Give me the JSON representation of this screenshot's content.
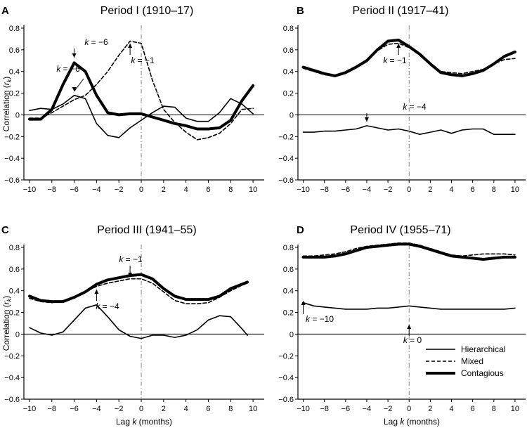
{
  "chart_data": [
    {
      "type": "line",
      "letter": "A",
      "title": "Period I  (1910–17)",
      "xlabel": "",
      "ylabel": "Correlation (r_k)",
      "xlim": [
        -10.5,
        11
      ],
      "ylim": [
        -0.6,
        0.8
      ],
      "x": [
        -10,
        -9,
        -8,
        -7,
        -6,
        -5,
        -4,
        -3,
        -2,
        -1,
        0,
        1,
        2,
        3,
        4,
        5,
        6,
        7,
        8,
        9,
        10
      ],
      "series": [
        {
          "name": "Hierarchical",
          "style": "thin",
          "values": [
            0.04,
            0.06,
            0.05,
            0.1,
            0.18,
            0.15,
            -0.08,
            -0.19,
            -0.21,
            -0.12,
            -0.05,
            0.02,
            0.08,
            0.07,
            -0.03,
            -0.06,
            -0.06,
            0.02,
            0.15,
            0.1,
            0.01
          ]
        },
        {
          "name": "Mixed",
          "style": "dashed",
          "values": [
            -0.03,
            -0.03,
            0.02,
            0.08,
            0.14,
            0.18,
            0.28,
            0.4,
            0.55,
            0.68,
            0.66,
            0.32,
            0.05,
            -0.07,
            -0.16,
            -0.23,
            -0.21,
            -0.17,
            -0.08,
            0.05,
            0.06
          ]
        },
        {
          "name": "Contagious",
          "style": "thick",
          "values": [
            -0.04,
            -0.04,
            0.05,
            0.28,
            0.48,
            0.4,
            0.18,
            0.02,
            0.0,
            0.01,
            0.01,
            -0.02,
            -0.05,
            -0.08,
            -0.1,
            -0.13,
            -0.13,
            -0.12,
            -0.05,
            0.13,
            0.27
          ]
        }
      ],
      "annotations": [
        {
          "text": "k = −6",
          "x": -6,
          "series": 2
        },
        {
          "text": "k = −6",
          "x": -6,
          "series": 0
        },
        {
          "text": "k = −1",
          "x": -1,
          "series": 1
        }
      ]
    },
    {
      "type": "line",
      "letter": "B",
      "title": "Period II  (1917–41)",
      "xlabel": "",
      "ylabel": "",
      "xlim": [
        -10.5,
        11
      ],
      "ylim": [
        -0.6,
        0.8
      ],
      "x": [
        -10,
        -9,
        -8,
        -7,
        -6,
        -5,
        -4,
        -3,
        -2,
        -1,
        0,
        1,
        2,
        3,
        4,
        5,
        6,
        7,
        8,
        9,
        10
      ],
      "series": [
        {
          "name": "Hierarchical",
          "style": "thin",
          "values": [
            -0.16,
            -0.16,
            -0.15,
            -0.15,
            -0.14,
            -0.13,
            -0.1,
            -0.12,
            -0.14,
            -0.13,
            -0.15,
            -0.18,
            -0.16,
            -0.14,
            -0.17,
            -0.14,
            -0.13,
            -0.13,
            -0.18,
            -0.18,
            -0.18
          ]
        },
        {
          "name": "Mixed",
          "style": "dashed",
          "values": [
            0.43,
            0.4,
            0.37,
            0.36,
            0.4,
            0.45,
            0.51,
            0.59,
            0.65,
            0.66,
            0.62,
            0.55,
            0.47,
            0.4,
            0.39,
            0.38,
            0.4,
            0.42,
            0.47,
            0.51,
            0.52
          ]
        },
        {
          "name": "Contagious",
          "style": "thick",
          "values": [
            0.44,
            0.41,
            0.38,
            0.36,
            0.39,
            0.44,
            0.5,
            0.6,
            0.68,
            0.69,
            0.63,
            0.56,
            0.47,
            0.39,
            0.37,
            0.36,
            0.38,
            0.41,
            0.47,
            0.54,
            0.58
          ]
        }
      ],
      "annotations": [
        {
          "text": "k = −4",
          "x": -4,
          "series": 0
        },
        {
          "text": "k = −1",
          "x": -1,
          "series": 1
        }
      ]
    },
    {
      "type": "line",
      "letter": "C",
      "title": "Period III  (1941–55)",
      "xlabel": "Lag k (months)",
      "ylabel": "Correlation (r_k)",
      "xlim": [
        -10.5,
        11
      ],
      "ylim": [
        -0.6,
        0.8
      ],
      "x": [
        -10,
        -9,
        -8,
        -7,
        -6,
        -5,
        -4,
        -3,
        -2,
        -1,
        0,
        1,
        2,
        3,
        4,
        5,
        6,
        7,
        8,
        9,
        9.5
      ],
      "series": [
        {
          "name": "Hierarchical",
          "style": "thin",
          "values": [
            0.06,
            0.01,
            -0.01,
            0.02,
            0.13,
            0.24,
            0.27,
            0.16,
            0.04,
            -0.02,
            -0.04,
            -0.01,
            -0.01,
            -0.03,
            -0.01,
            0.04,
            0.13,
            0.17,
            0.16,
            0.05,
            -0.01
          ]
        },
        {
          "name": "Mixed",
          "style": "dashed",
          "values": [
            0.33,
            0.3,
            0.29,
            0.31,
            0.33,
            0.39,
            0.44,
            0.47,
            0.49,
            0.51,
            0.51,
            0.47,
            0.39,
            0.31,
            0.28,
            0.28,
            0.29,
            0.34,
            0.4,
            0.45,
            0.47
          ]
        },
        {
          "name": "Contagious",
          "style": "thick",
          "values": [
            0.35,
            0.31,
            0.3,
            0.3,
            0.34,
            0.39,
            0.46,
            0.5,
            0.52,
            0.54,
            0.55,
            0.51,
            0.42,
            0.35,
            0.32,
            0.32,
            0.32,
            0.35,
            0.42,
            0.46,
            0.48
          ]
        }
      ],
      "annotations": [
        {
          "text": "k = −1",
          "x": -1,
          "series": 2
        },
        {
          "text": "k = −4",
          "x": -4,
          "series": 0
        }
      ]
    },
    {
      "type": "line",
      "letter": "D",
      "title": "Period IV  (1955–71)",
      "xlabel": "Lag k (months)",
      "ylabel": "",
      "xlim": [
        -10.5,
        11
      ],
      "ylim": [
        -0.6,
        0.8
      ],
      "x": [
        -10,
        -9,
        -8,
        -7,
        -6,
        -5,
        -4,
        -3,
        -2,
        -1,
        0,
        1,
        2,
        3,
        4,
        5,
        6,
        7,
        8,
        9,
        10
      ],
      "series": [
        {
          "name": "Hierarchical",
          "style": "thin",
          "values": [
            0.29,
            0.26,
            0.25,
            0.24,
            0.23,
            0.23,
            0.23,
            0.24,
            0.24,
            0.25,
            0.26,
            0.25,
            0.24,
            0.23,
            0.23,
            0.23,
            0.23,
            0.23,
            0.23,
            0.23,
            0.24
          ]
        },
        {
          "name": "Mixed",
          "style": "dashed",
          "values": [
            0.72,
            0.72,
            0.73,
            0.74,
            0.76,
            0.79,
            0.81,
            0.82,
            0.83,
            0.84,
            0.84,
            0.82,
            0.79,
            0.76,
            0.73,
            0.72,
            0.73,
            0.74,
            0.74,
            0.74,
            0.73
          ]
        },
        {
          "name": "Contagious",
          "style": "thick",
          "values": [
            0.71,
            0.71,
            0.71,
            0.72,
            0.74,
            0.77,
            0.8,
            0.81,
            0.82,
            0.83,
            0.83,
            0.81,
            0.78,
            0.75,
            0.72,
            0.71,
            0.7,
            0.69,
            0.7,
            0.71,
            0.71
          ]
        }
      ],
      "annotations": [
        {
          "text": "k = 0",
          "x": 0,
          "series": 2
        },
        {
          "text": "k = −10",
          "x": -10,
          "series": 0
        }
      ]
    }
  ],
  "legend": {
    "placement": "bottom-right of panel D",
    "items": [
      {
        "label": "Hierarchical",
        "style": "thin"
      },
      {
        "label": "Mixed",
        "style": "dashed"
      },
      {
        "label": "Contagious",
        "style": "thick"
      }
    ]
  },
  "xticks": [
    -10,
    -8,
    -6,
    -4,
    -2,
    0,
    2,
    4,
    6,
    8,
    10
  ],
  "yticks": [
    -0.6,
    -0.4,
    -0.2,
    0,
    0.2,
    0.4,
    0.6,
    0.8
  ]
}
